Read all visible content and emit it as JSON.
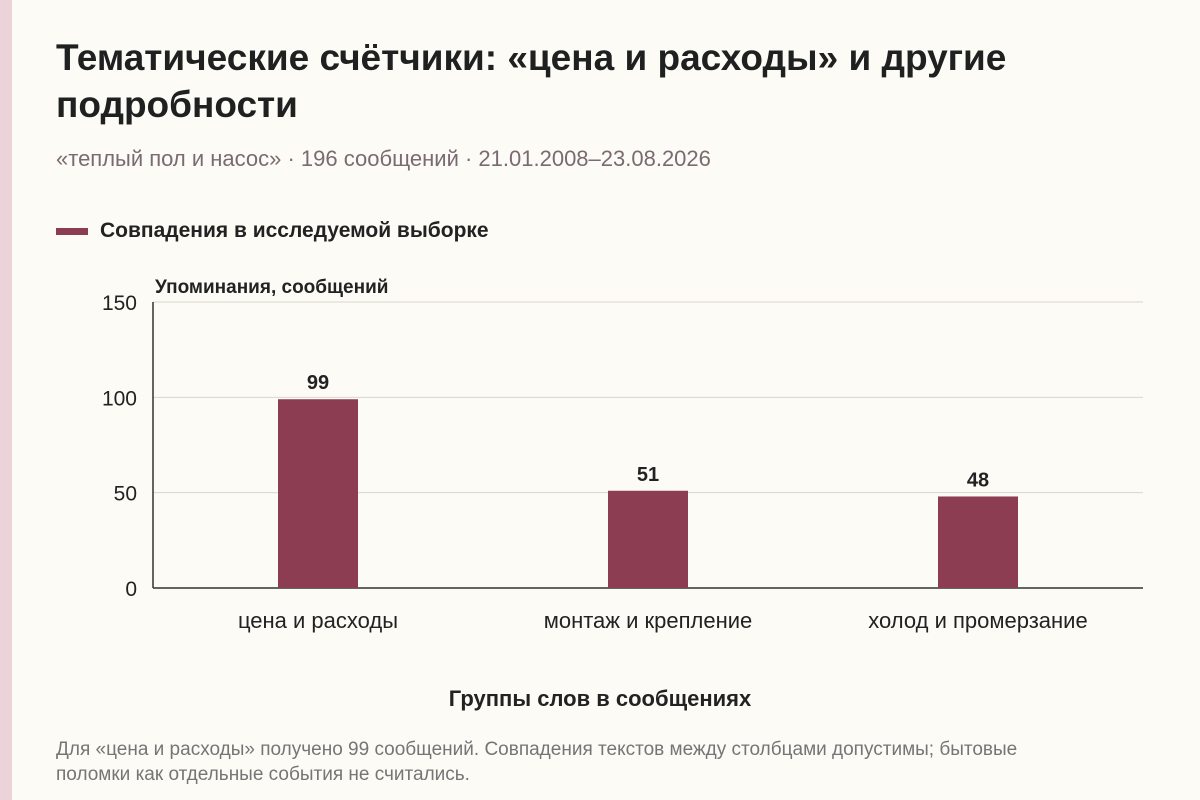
{
  "title": "Тематические счётчики: «цена и расходы» и другие подробности",
  "subtitle": "«теплый пол и насос» · 196 сообщений · 21.01.2008–23.08.2026",
  "note": "Для «цена и расходы» получено 99 сообщений. Совпадения текстов между столбцами допустимы; бытовые поломки как отдельные события не считались.",
  "colors": {
    "bar": "#8c3d52",
    "grid": "#d9d6cf",
    "axis": "#333333"
  },
  "chart_data": {
    "type": "bar",
    "title": "Тематические счётчики: «цена и расходы» и другие подробности",
    "subtitle": "«теплый пол и насос» · 196 сообщений · 21.01.2008–23.08.2026",
    "ylabel": "Упоминания, сообщений",
    "xlabel": "Группы слов в сообщениях",
    "categories": [
      "цена и расходы",
      "монтаж и крепление",
      "холод и промерзание"
    ],
    "series": [
      {
        "name": "Совпадения в исследуемой выборке",
        "values": [
          99,
          51,
          48
        ]
      }
    ],
    "ylim": [
      0,
      150
    ],
    "yticks": [
      0,
      50,
      100,
      150
    ],
    "grid": true,
    "legend": "top-left",
    "data_labels": true
  }
}
